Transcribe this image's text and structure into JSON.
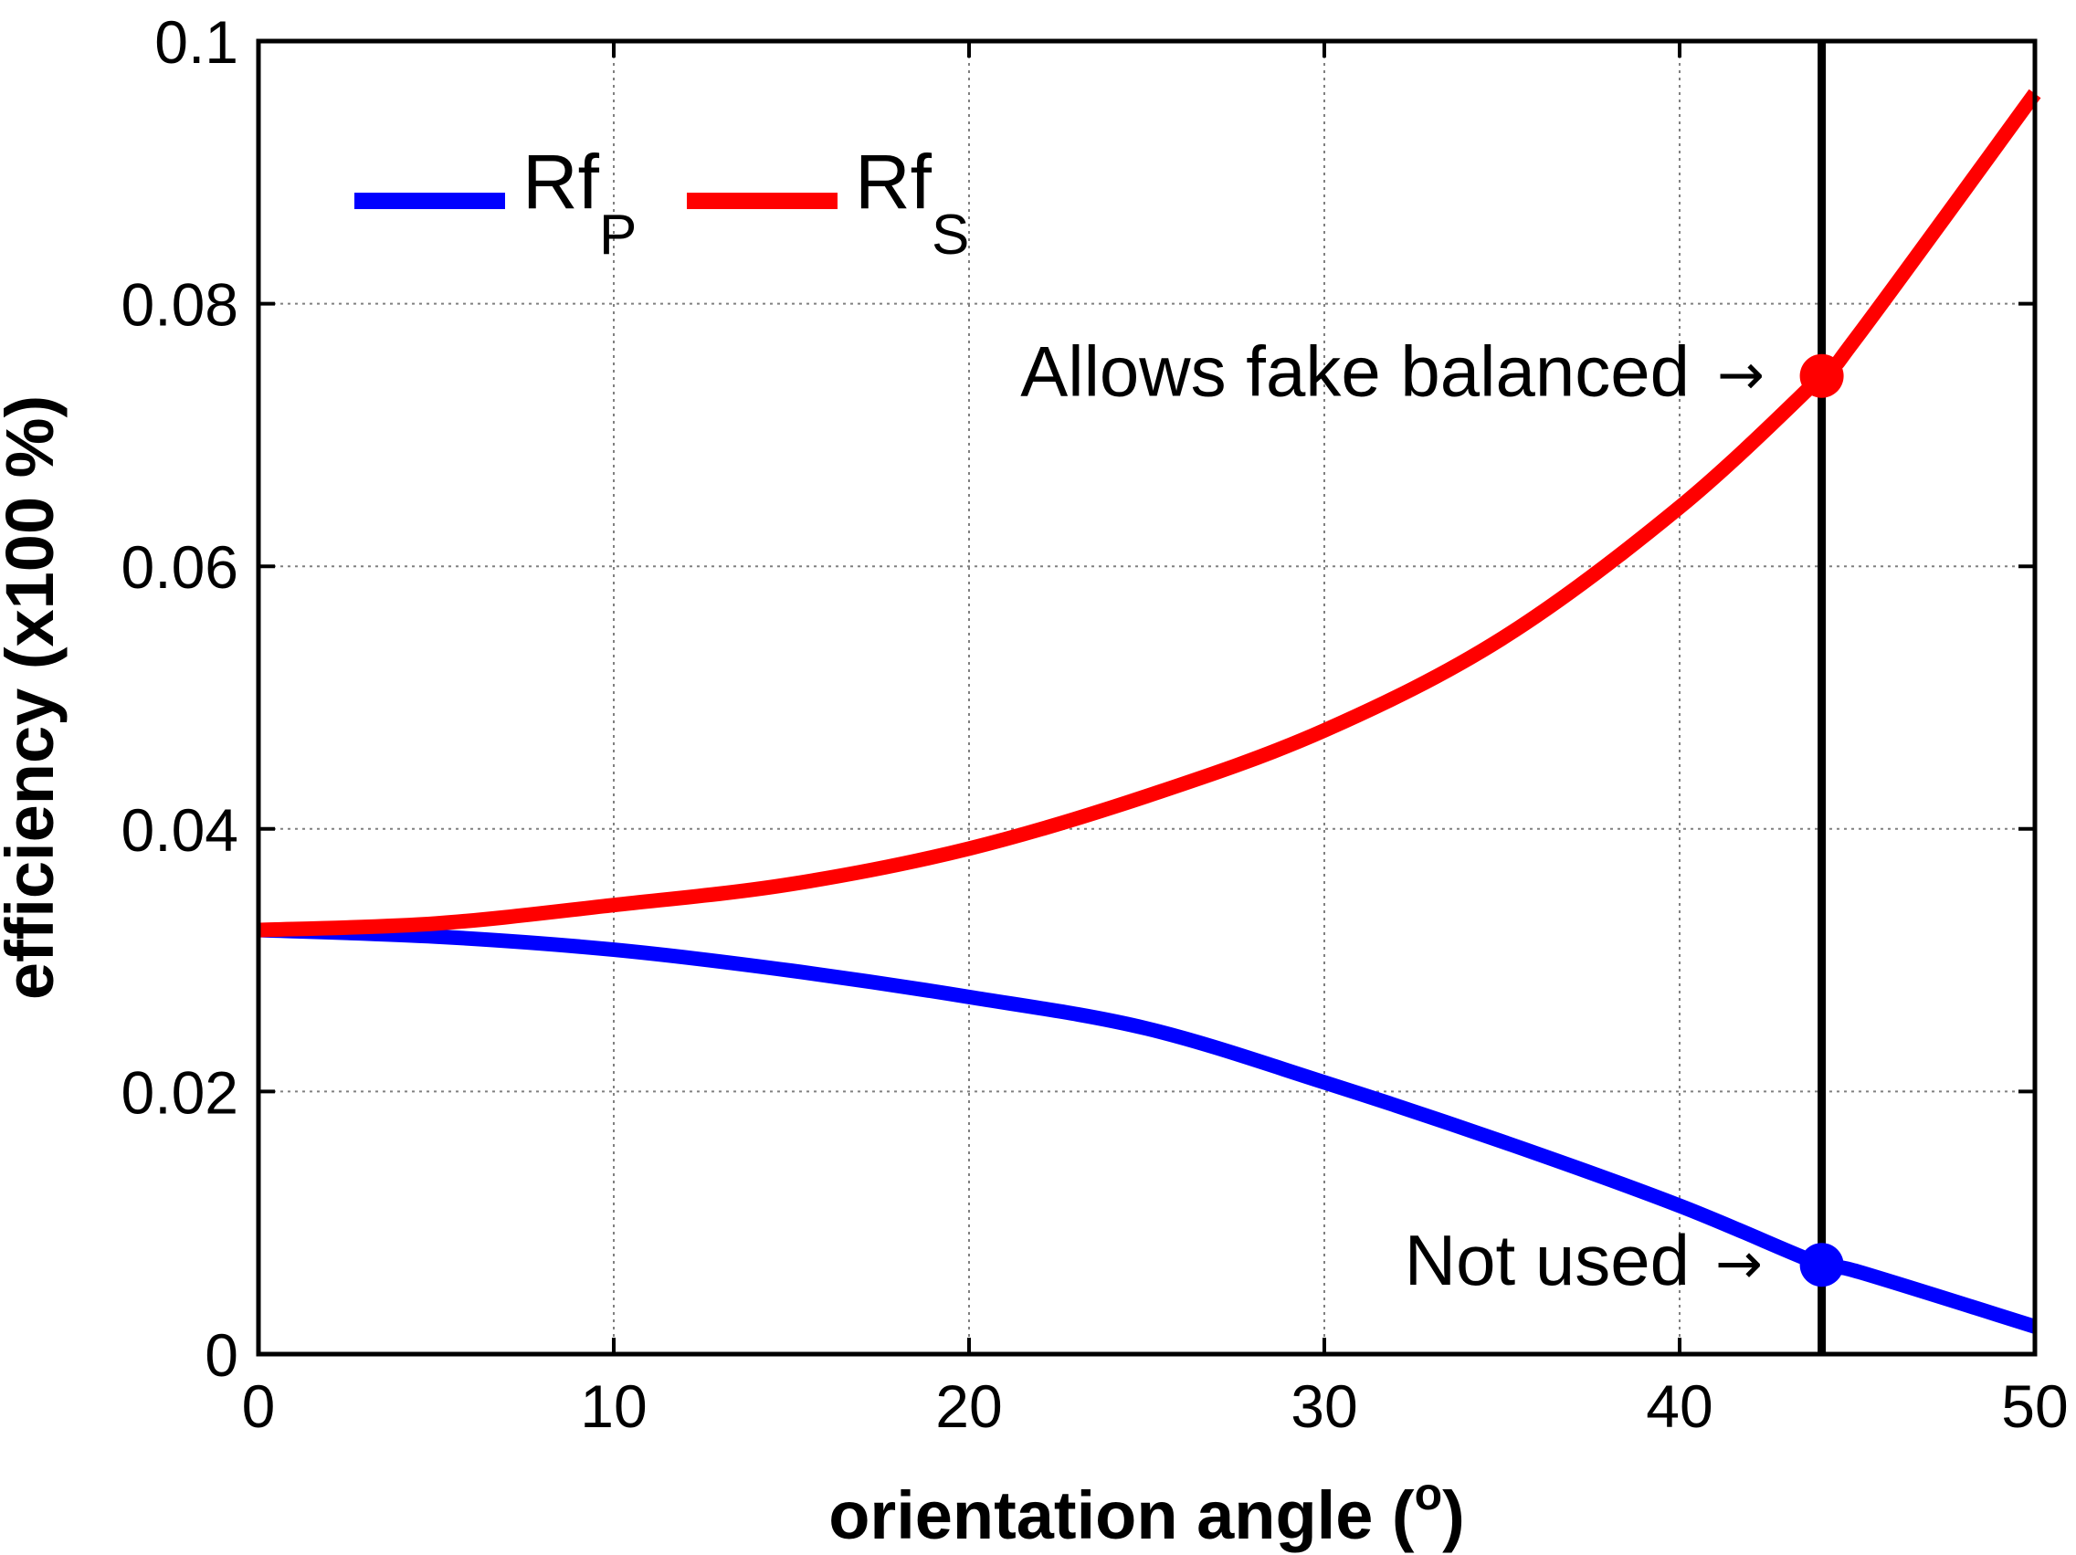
{
  "chart_data": {
    "type": "line",
    "xlabel_main": "orientation angle (",
    "xlabel_sup": "o",
    "xlabel_close": ")",
    "ylabel": "efficiency (x100 %)",
    "xlim": [
      0,
      50
    ],
    "ylim": [
      0,
      0.1
    ],
    "x_ticks": [
      0,
      10,
      20,
      30,
      40,
      50
    ],
    "x_tick_labels": [
      "0",
      "10",
      "20",
      "30",
      "40",
      "50"
    ],
    "y_ticks": [
      0,
      0.02,
      0.04,
      0.06,
      0.08,
      0.1
    ],
    "y_tick_labels": [
      "0",
      "0.02",
      "0.04",
      "0.06",
      "0.08",
      "0.1"
    ],
    "grid": true,
    "legend_position": "top-left",
    "series": [
      {
        "name": "Rf",
        "name_subscript": "P",
        "color": "#0000ff",
        "x": [
          0,
          5,
          10,
          15,
          20,
          25,
          30,
          35,
          40,
          44,
          45,
          50
        ],
        "y": [
          0.0323,
          0.0318,
          0.0308,
          0.0292,
          0.0272,
          0.0248,
          0.0207,
          0.0162,
          0.0113,
          0.0068,
          0.0063,
          0.0021
        ]
      },
      {
        "name": "Rf",
        "name_subscript": "S",
        "color": "#ff0000",
        "x": [
          0,
          5,
          10,
          15,
          20,
          25,
          30,
          35,
          40,
          44,
          45,
          50
        ],
        "y": [
          0.0323,
          0.0328,
          0.0342,
          0.0358,
          0.0385,
          0.0425,
          0.0475,
          0.0545,
          0.0645,
          0.0745,
          0.0775,
          0.096
        ]
      }
    ],
    "vertical_line": {
      "x": 44,
      "color": "#000000"
    },
    "markers": [
      {
        "x": 44,
        "y": 0.0745,
        "color": "#ff0000"
      },
      {
        "x": 44,
        "y": 0.0068,
        "color": "#0000ff"
      }
    ],
    "annotations": [
      {
        "text": "Allows fake balanced",
        "arrow": "→",
        "x": 44,
        "y": 0.0745
      },
      {
        "text": "Not used",
        "arrow": "→",
        "x": 44,
        "y": 0.0068
      }
    ]
  }
}
